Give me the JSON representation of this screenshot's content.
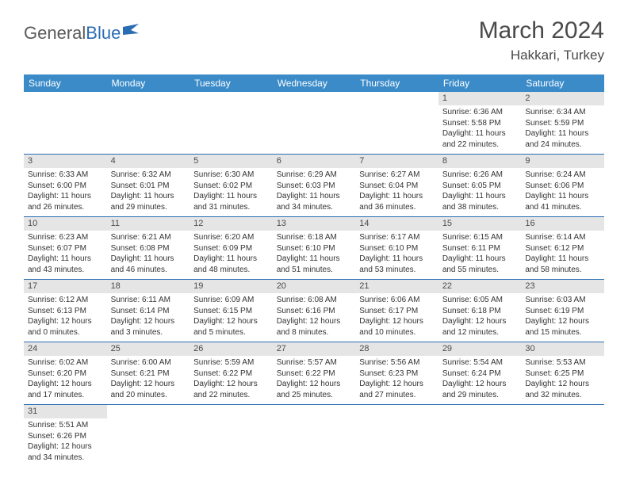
{
  "logo": {
    "text1": "General",
    "text2": "Blue"
  },
  "title": "March 2024",
  "location": "Hakkari, Turkey",
  "colors": {
    "header_bg": "#3b8bc9",
    "header_fg": "#ffffff",
    "daynum_bg": "#e5e5e5",
    "border": "#2a6db3",
    "logo_gray": "#5a5a5a",
    "logo_blue": "#2a6db3"
  },
  "weekdays": [
    "Sunday",
    "Monday",
    "Tuesday",
    "Wednesday",
    "Thursday",
    "Friday",
    "Saturday"
  ],
  "weeks": [
    [
      null,
      null,
      null,
      null,
      null,
      {
        "n": "1",
        "sr": "Sunrise: 6:36 AM",
        "ss": "Sunset: 5:58 PM",
        "dl": "Daylight: 11 hours and 22 minutes."
      },
      {
        "n": "2",
        "sr": "Sunrise: 6:34 AM",
        "ss": "Sunset: 5:59 PM",
        "dl": "Daylight: 11 hours and 24 minutes."
      }
    ],
    [
      {
        "n": "3",
        "sr": "Sunrise: 6:33 AM",
        "ss": "Sunset: 6:00 PM",
        "dl": "Daylight: 11 hours and 26 minutes."
      },
      {
        "n": "4",
        "sr": "Sunrise: 6:32 AM",
        "ss": "Sunset: 6:01 PM",
        "dl": "Daylight: 11 hours and 29 minutes."
      },
      {
        "n": "5",
        "sr": "Sunrise: 6:30 AM",
        "ss": "Sunset: 6:02 PM",
        "dl": "Daylight: 11 hours and 31 minutes."
      },
      {
        "n": "6",
        "sr": "Sunrise: 6:29 AM",
        "ss": "Sunset: 6:03 PM",
        "dl": "Daylight: 11 hours and 34 minutes."
      },
      {
        "n": "7",
        "sr": "Sunrise: 6:27 AM",
        "ss": "Sunset: 6:04 PM",
        "dl": "Daylight: 11 hours and 36 minutes."
      },
      {
        "n": "8",
        "sr": "Sunrise: 6:26 AM",
        "ss": "Sunset: 6:05 PM",
        "dl": "Daylight: 11 hours and 38 minutes."
      },
      {
        "n": "9",
        "sr": "Sunrise: 6:24 AM",
        "ss": "Sunset: 6:06 PM",
        "dl": "Daylight: 11 hours and 41 minutes."
      }
    ],
    [
      {
        "n": "10",
        "sr": "Sunrise: 6:23 AM",
        "ss": "Sunset: 6:07 PM",
        "dl": "Daylight: 11 hours and 43 minutes."
      },
      {
        "n": "11",
        "sr": "Sunrise: 6:21 AM",
        "ss": "Sunset: 6:08 PM",
        "dl": "Daylight: 11 hours and 46 minutes."
      },
      {
        "n": "12",
        "sr": "Sunrise: 6:20 AM",
        "ss": "Sunset: 6:09 PM",
        "dl": "Daylight: 11 hours and 48 minutes."
      },
      {
        "n": "13",
        "sr": "Sunrise: 6:18 AM",
        "ss": "Sunset: 6:10 PM",
        "dl": "Daylight: 11 hours and 51 minutes."
      },
      {
        "n": "14",
        "sr": "Sunrise: 6:17 AM",
        "ss": "Sunset: 6:10 PM",
        "dl": "Daylight: 11 hours and 53 minutes."
      },
      {
        "n": "15",
        "sr": "Sunrise: 6:15 AM",
        "ss": "Sunset: 6:11 PM",
        "dl": "Daylight: 11 hours and 55 minutes."
      },
      {
        "n": "16",
        "sr": "Sunrise: 6:14 AM",
        "ss": "Sunset: 6:12 PM",
        "dl": "Daylight: 11 hours and 58 minutes."
      }
    ],
    [
      {
        "n": "17",
        "sr": "Sunrise: 6:12 AM",
        "ss": "Sunset: 6:13 PM",
        "dl": "Daylight: 12 hours and 0 minutes."
      },
      {
        "n": "18",
        "sr": "Sunrise: 6:11 AM",
        "ss": "Sunset: 6:14 PM",
        "dl": "Daylight: 12 hours and 3 minutes."
      },
      {
        "n": "19",
        "sr": "Sunrise: 6:09 AM",
        "ss": "Sunset: 6:15 PM",
        "dl": "Daylight: 12 hours and 5 minutes."
      },
      {
        "n": "20",
        "sr": "Sunrise: 6:08 AM",
        "ss": "Sunset: 6:16 PM",
        "dl": "Daylight: 12 hours and 8 minutes."
      },
      {
        "n": "21",
        "sr": "Sunrise: 6:06 AM",
        "ss": "Sunset: 6:17 PM",
        "dl": "Daylight: 12 hours and 10 minutes."
      },
      {
        "n": "22",
        "sr": "Sunrise: 6:05 AM",
        "ss": "Sunset: 6:18 PM",
        "dl": "Daylight: 12 hours and 12 minutes."
      },
      {
        "n": "23",
        "sr": "Sunrise: 6:03 AM",
        "ss": "Sunset: 6:19 PM",
        "dl": "Daylight: 12 hours and 15 minutes."
      }
    ],
    [
      {
        "n": "24",
        "sr": "Sunrise: 6:02 AM",
        "ss": "Sunset: 6:20 PM",
        "dl": "Daylight: 12 hours and 17 minutes."
      },
      {
        "n": "25",
        "sr": "Sunrise: 6:00 AM",
        "ss": "Sunset: 6:21 PM",
        "dl": "Daylight: 12 hours and 20 minutes."
      },
      {
        "n": "26",
        "sr": "Sunrise: 5:59 AM",
        "ss": "Sunset: 6:22 PM",
        "dl": "Daylight: 12 hours and 22 minutes."
      },
      {
        "n": "27",
        "sr": "Sunrise: 5:57 AM",
        "ss": "Sunset: 6:22 PM",
        "dl": "Daylight: 12 hours and 25 minutes."
      },
      {
        "n": "28",
        "sr": "Sunrise: 5:56 AM",
        "ss": "Sunset: 6:23 PM",
        "dl": "Daylight: 12 hours and 27 minutes."
      },
      {
        "n": "29",
        "sr": "Sunrise: 5:54 AM",
        "ss": "Sunset: 6:24 PM",
        "dl": "Daylight: 12 hours and 29 minutes."
      },
      {
        "n": "30",
        "sr": "Sunrise: 5:53 AM",
        "ss": "Sunset: 6:25 PM",
        "dl": "Daylight: 12 hours and 32 minutes."
      }
    ],
    [
      {
        "n": "31",
        "sr": "Sunrise: 5:51 AM",
        "ss": "Sunset: 6:26 PM",
        "dl": "Daylight: 12 hours and 34 minutes."
      },
      null,
      null,
      null,
      null,
      null,
      null
    ]
  ]
}
